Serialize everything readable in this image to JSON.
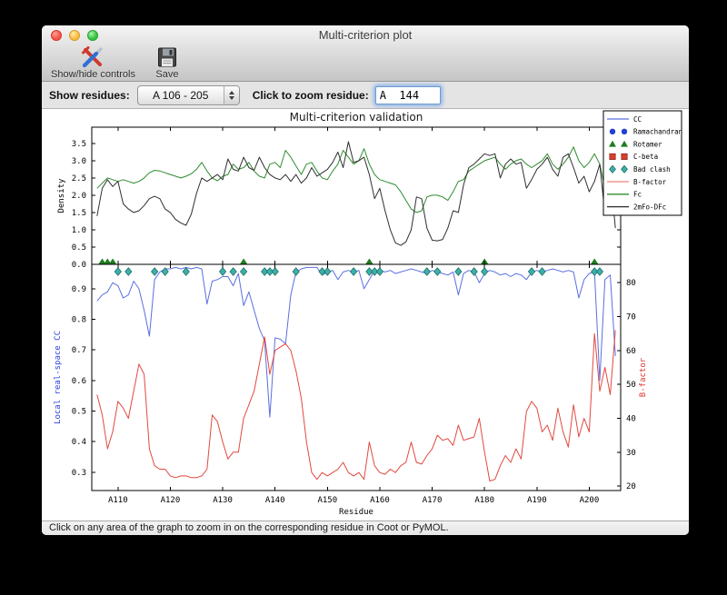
{
  "window": {
    "title": "Multi-criterion plot"
  },
  "toolbar": {
    "buttons": [
      {
        "label": "Show/hide controls",
        "icon": "tools-icon"
      },
      {
        "label": "Save",
        "icon": "floppy-disk-icon"
      }
    ]
  },
  "controls": {
    "show_residues_label": "Show residues:",
    "show_residues_value": "A 106 - 205",
    "zoom_residue_label": "Click to zoom residue:",
    "zoom_residue_value": "A  144"
  },
  "status_bar": {
    "text": "Click on any area of the graph to zoom in on the corresponding residue in Coot or PyMOL."
  },
  "chart_data": {
    "type": "line",
    "title": "Multi-criterion validation",
    "xlabel": "Residue",
    "x_range": [
      106,
      205
    ],
    "x_step": 1,
    "xticks": [
      "A110",
      "A120",
      "A130",
      "A140",
      "A150",
      "A160",
      "A170",
      "A180",
      "A190",
      "A200"
    ],
    "panels": [
      {
        "name": "density",
        "ylabel": "Density",
        "ylabel_color": "#000000",
        "ylim": [
          0,
          3.97
        ],
        "yticks": [
          0.0,
          0.5,
          1.0,
          1.5,
          2.0,
          2.5,
          3.0,
          3.5
        ],
        "series": [
          {
            "name": "Fc",
            "color": "#2e8b2e",
            "values": [
              2.2,
              2.35,
              2.5,
              2.45,
              2.4,
              2.45,
              2.4,
              2.35,
              2.4,
              2.5,
              2.65,
              2.72,
              2.7,
              2.65,
              2.6,
              2.55,
              2.5,
              2.55,
              2.62,
              2.75,
              2.95,
              2.7,
              2.5,
              2.42,
              2.55,
              2.6,
              2.9,
              2.75,
              2.8,
              2.95,
              2.7,
              2.55,
              2.5,
              2.9,
              2.95,
              2.8,
              3.3,
              3.1,
              2.85,
              2.6,
              2.9,
              2.95,
              2.7,
              2.5,
              2.45,
              2.7,
              2.9,
              3.3,
              3.1,
              2.9,
              3.0,
              3.35,
              2.9,
              2.6,
              2.45,
              2.4,
              2.35,
              2.3,
              2.1,
              1.85,
              1.6,
              1.5,
              1.55,
              1.95,
              2.0,
              2.0,
              1.95,
              1.85,
              2.1,
              2.4,
              2.45,
              2.7,
              2.8,
              2.9,
              3.0,
              3.05,
              3.1,
              2.9,
              2.75,
              2.9,
              3.0,
              3.05,
              2.9,
              2.8,
              2.9,
              3.0,
              3.2,
              2.9,
              2.75,
              2.9,
              3.1,
              3.4,
              3.0,
              2.8,
              2.95,
              3.2,
              2.9,
              2.2,
              2.95,
              2.9
            ]
          },
          {
            "name": "2mFo-DFc",
            "color": "#2f2f2f",
            "values": [
              1.4,
              2.2,
              2.45,
              2.25,
              2.4,
              1.75,
              1.6,
              1.5,
              1.55,
              1.7,
              1.9,
              1.97,
              1.9,
              1.6,
              1.5,
              1.3,
              1.2,
              1.13,
              1.45,
              2.05,
              2.5,
              2.4,
              2.5,
              2.6,
              2.45,
              3.05,
              2.75,
              2.7,
              3.1,
              2.8,
              2.72,
              3.1,
              2.8,
              2.6,
              2.5,
              2.45,
              2.6,
              2.4,
              2.6,
              2.35,
              2.5,
              2.8,
              2.55,
              2.65,
              2.75,
              2.95,
              3.25,
              2.8,
              3.55,
              2.95,
              3.0,
              3.1,
              2.6,
              1.9,
              2.2,
              1.55,
              1.0,
              0.62,
              0.55,
              0.65,
              1.0,
              1.95,
              1.9,
              1.05,
              0.7,
              0.68,
              0.72,
              1.05,
              1.55,
              1.5,
              2.3,
              2.8,
              2.9,
              3.05,
              3.2,
              3.15,
              3.2,
              2.5,
              2.9,
              3.05,
              2.9,
              2.95,
              2.2,
              2.45,
              2.75,
              2.9,
              3.1,
              2.75,
              2.55,
              3.1,
              3.2,
              2.8,
              2.35,
              2.55,
              2.1,
              2.4,
              2.9,
              1.45,
              2.6,
              1.05
            ]
          }
        ]
      },
      {
        "name": "real-space-validation",
        "ylabel_left": "Local real-space CC",
        "ylabel_left_color": "#2b3fd8",
        "ylim_left": [
          0.24,
          0.98
        ],
        "yticks_left": [
          0.3,
          0.4,
          0.5,
          0.6,
          0.7,
          0.8,
          0.9
        ],
        "ylabel_right": "B-factor",
        "ylabel_right_color": "#e0332a",
        "ylim_right": [
          18.7,
          85.4
        ],
        "yticks_right": [
          20,
          30,
          40,
          50,
          60,
          70,
          80
        ],
        "series": [
          {
            "name": "CC",
            "axis": "left",
            "color": "#5a6fe0",
            "values": [
              0.86,
              0.88,
              0.89,
              0.92,
              0.91,
              0.87,
              0.88,
              0.925,
              0.9,
              0.83,
              0.745,
              0.93,
              0.955,
              0.965,
              0.965,
              0.97,
              0.965,
              0.97,
              0.965,
              0.97,
              0.965,
              0.85,
              0.925,
              0.93,
              0.94,
              0.94,
              0.91,
              0.95,
              0.845,
              0.89,
              0.83,
              0.77,
              0.73,
              0.48,
              0.74,
              0.735,
              0.72,
              0.88,
              0.955,
              0.965,
              0.97,
              0.97,
              0.97,
              0.945,
              0.955,
              0.96,
              0.93,
              0.955,
              0.96,
              0.955,
              0.96,
              0.9,
              0.93,
              0.96,
              0.96,
              0.955,
              0.96,
              0.95,
              0.955,
              0.96,
              0.965,
              0.96,
              0.955,
              0.95,
              0.96,
              0.955,
              0.95,
              0.945,
              0.955,
              0.88,
              0.95,
              0.96,
              0.955,
              0.92,
              0.95,
              0.96,
              0.955,
              0.945,
              0.95,
              0.94,
              0.95,
              0.945,
              0.93,
              0.955,
              0.96,
              0.955,
              0.96,
              0.965,
              0.96,
              0.955,
              0.96,
              0.955,
              0.87,
              0.93,
              0.95,
              0.955,
              0.6,
              0.93,
              0.945,
              0.68
            ]
          },
          {
            "name": "B-factor",
            "axis": "right",
            "color": "#e0493f",
            "values": [
              47,
              41,
              31,
              36,
              45,
              43,
              40,
              48,
              56,
              53,
              31,
              26,
              25,
              25,
              23,
              22.5,
              23,
              23,
              22.5,
              22.5,
              23,
              25,
              41,
              39,
              33,
              28,
              30,
              30,
              40,
              44,
              48,
              56,
              64,
              53,
              60,
              61,
              62,
              60,
              54,
              46,
              33,
              24,
              22,
              24,
              23,
              24,
              25,
              27,
              24,
              23,
              24,
              22,
              33,
              26,
              24,
              23.5,
              25,
              24,
              26,
              27,
              33,
              27,
              26.5,
              29,
              31,
              35,
              33.5,
              34,
              32,
              38,
              33.5,
              34,
              34.5,
              40,
              30,
              21.5,
              22,
              26,
              29,
              27,
              31,
              28,
              42,
              45,
              43,
              36,
              38,
              33.5,
              43,
              36,
              31.5,
              44,
              34.5,
              40,
              36,
              65,
              48,
              55,
              47,
              66
            ]
          }
        ],
        "markers": {
          "rotamer": {
            "shape": "triangle",
            "color": "#1e7d1e",
            "residues": [
              107,
              108,
              109,
              134,
              158,
              180,
              201
            ]
          },
          "bad_clash": {
            "shape": "diamond",
            "color": "#3cb0a8",
            "edge_color": "#1f6f68",
            "residues": [
              110,
              112,
              117,
              119,
              123,
              130,
              132,
              134,
              138,
              139,
              140,
              144,
              149,
              150,
              155,
              158,
              159,
              160,
              169,
              171,
              175,
              178,
              180,
              189,
              191,
              201,
              202
            ]
          }
        }
      }
    ],
    "legend": {
      "position": "upper right, outside axes",
      "entries": [
        {
          "label": "CC",
          "marker": "line",
          "color": "#5a6fe0"
        },
        {
          "label": "Ramachandran",
          "marker": "circles",
          "color": "#2040d0"
        },
        {
          "label": "Rotamer",
          "marker": "triangles",
          "color": "#1e7d1e"
        },
        {
          "label": "C-beta",
          "marker": "squares",
          "color": "#d6402e"
        },
        {
          "label": "Bad clash",
          "marker": "diamonds",
          "color": "#3cb0a8"
        },
        {
          "label": "B-factor",
          "marker": "line",
          "color": "#f2857a"
        },
        {
          "label": "Fc",
          "marker": "line",
          "color": "#2e8b2e"
        },
        {
          "label": "2mFo-DFc",
          "marker": "line",
          "color": "#2b2b2b"
        }
      ]
    }
  }
}
